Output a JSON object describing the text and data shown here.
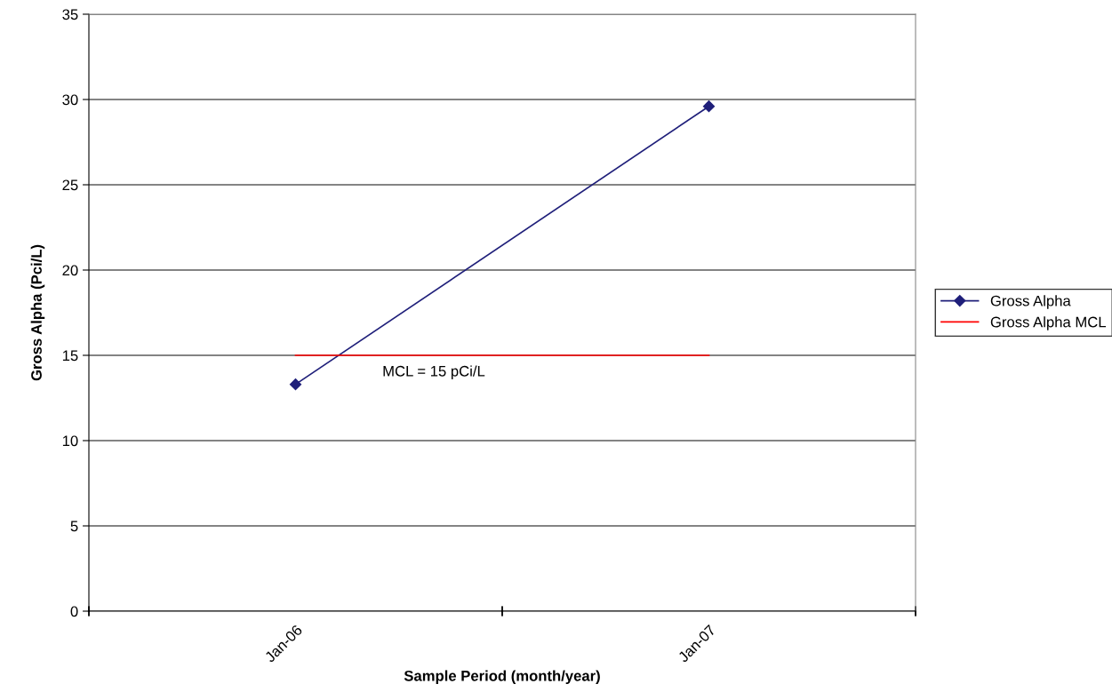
{
  "chart_data": {
    "type": "line",
    "xlabel": "Sample Period (month/year)",
    "ylabel": "Gross Alpha (Pci/L)",
    "categories": [
      "Jan-06",
      "Jan-07"
    ],
    "series": [
      {
        "name": "Gross Alpha",
        "color": "#1f1f7a",
        "values": [
          13.3,
          29.6
        ],
        "marker": "diamond"
      },
      {
        "name": "Gross Alpha MCL",
        "color": "#ff0000",
        "values": [
          15,
          15
        ],
        "marker": "none"
      }
    ],
    "ylim": [
      0,
      35
    ],
    "yticks": [
      0,
      5,
      10,
      15,
      20,
      25,
      30,
      35
    ],
    "grid": "y",
    "legend": "right",
    "line_style": "solid",
    "annotations": [
      "MCL = 15 pCi/L"
    ]
  }
}
